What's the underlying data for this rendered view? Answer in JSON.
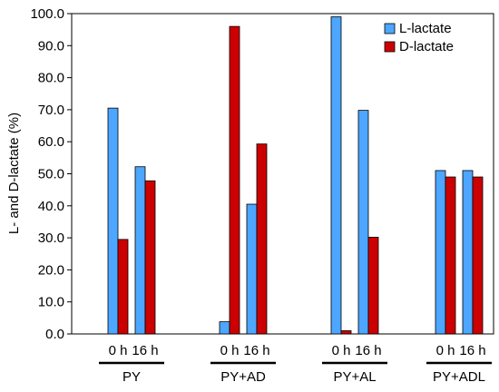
{
  "chart_data": {
    "type": "bar",
    "title": "",
    "ylabel": "L- and D-lactate (%)",
    "xlabel": "",
    "ylim": [
      0,
      100
    ],
    "yticks": [
      "0.0",
      "10.0",
      "20.0",
      "30.0",
      "40.0",
      "50.0",
      "60.0",
      "70.0",
      "80.0",
      "90.0",
      "100.0"
    ],
    "grid": false,
    "legend_position": "top-right",
    "groups": [
      "PY",
      "PY+AD",
      "PY+AL",
      "PY+ADL"
    ],
    "subcategories": [
      "0 h",
      "16 h"
    ],
    "categories": [
      "PY 0 h",
      "PY 16 h",
      "PY+AD 0 h",
      "PY+AD 16 h",
      "PY+AL 0 h",
      "PY+AL 16 h",
      "PY+ADL 0 h",
      "PY+ADL 16 h"
    ],
    "series": [
      {
        "name": "L-lactate",
        "color": "#4da6ff",
        "values": [
          70.5,
          52.2,
          3.8,
          40.5,
          99.0,
          69.8,
          51.0,
          51.0
        ]
      },
      {
        "name": "D-lactate",
        "color": "#cc0000",
        "values": [
          29.5,
          47.8,
          96.0,
          59.3,
          1.0,
          30.2,
          49.0,
          49.0
        ]
      }
    ]
  }
}
